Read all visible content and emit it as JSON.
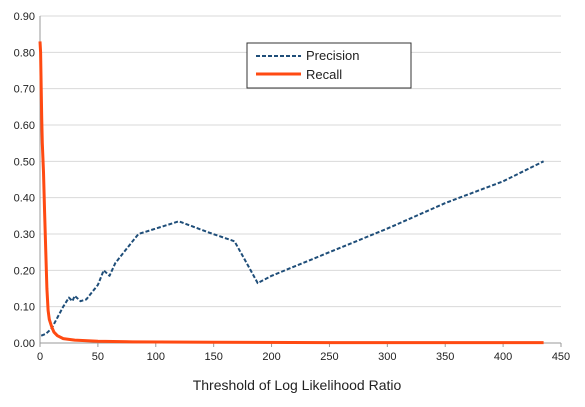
{
  "chart_data": {
    "type": "line",
    "title": "",
    "xlabel": "Threshold of Log Likelihood Ratio",
    "ylabel": "",
    "xlim": [
      0,
      450
    ],
    "ylim": [
      0,
      0.9
    ],
    "x_ticks": [
      0,
      50,
      100,
      150,
      200,
      250,
      300,
      350,
      400,
      450
    ],
    "y_ticks": [
      0.0,
      0.1,
      0.2,
      0.3,
      0.4,
      0.5,
      0.6,
      0.7,
      0.8,
      0.9
    ],
    "x_tick_labels": [
      "0",
      "50",
      "100",
      "150",
      "200",
      "250",
      "300",
      "350",
      "400",
      "450"
    ],
    "y_tick_labels": [
      "0.00",
      "0.10",
      "0.20",
      "0.30",
      "0.40",
      "0.50",
      "0.60",
      "0.70",
      "0.80",
      "0.90"
    ],
    "grid": "horizontal",
    "legend_position": "top-right",
    "series": [
      {
        "name": "Precision",
        "color": "#1f4e79",
        "style": "dashed",
        "points": [
          [
            1,
            0.02
          ],
          [
            5,
            0.025
          ],
          [
            10,
            0.04
          ],
          [
            15,
            0.07
          ],
          [
            20,
            0.1
          ],
          [
            25,
            0.125
          ],
          [
            28,
            0.115
          ],
          [
            30,
            0.13
          ],
          [
            35,
            0.115
          ],
          [
            40,
            0.12
          ],
          [
            45,
            0.14
          ],
          [
            50,
            0.16
          ],
          [
            55,
            0.2
          ],
          [
            60,
            0.185
          ],
          [
            65,
            0.22
          ],
          [
            75,
            0.26
          ],
          [
            85,
            0.3
          ],
          [
            95,
            0.31
          ],
          [
            120,
            0.335
          ],
          [
            145,
            0.305
          ],
          [
            168,
            0.28
          ],
          [
            175,
            0.24
          ],
          [
            188,
            0.165
          ],
          [
            200,
            0.185
          ],
          [
            250,
            0.25
          ],
          [
            300,
            0.315
          ],
          [
            350,
            0.385
          ],
          [
            400,
            0.445
          ],
          [
            435,
            0.5
          ]
        ]
      },
      {
        "name": "Recall",
        "color": "#ff4a12",
        "style": "solid",
        "points": [
          [
            0,
            0.83
          ],
          [
            0.5,
            0.8
          ],
          [
            1,
            0.7
          ],
          [
            1.5,
            0.62
          ],
          [
            2,
            0.55
          ],
          [
            3,
            0.47
          ],
          [
            4,
            0.36
          ],
          [
            5,
            0.25
          ],
          [
            6,
            0.15
          ],
          [
            7,
            0.09
          ],
          [
            8,
            0.065
          ],
          [
            10,
            0.045
          ],
          [
            12,
            0.03
          ],
          [
            15,
            0.02
          ],
          [
            20,
            0.012
          ],
          [
            30,
            0.008
          ],
          [
            50,
            0.005
          ],
          [
            80,
            0.003
          ],
          [
            150,
            0.002
          ],
          [
            250,
            0.001
          ],
          [
            350,
            0.001
          ],
          [
            435,
            0.001
          ]
        ]
      }
    ]
  }
}
